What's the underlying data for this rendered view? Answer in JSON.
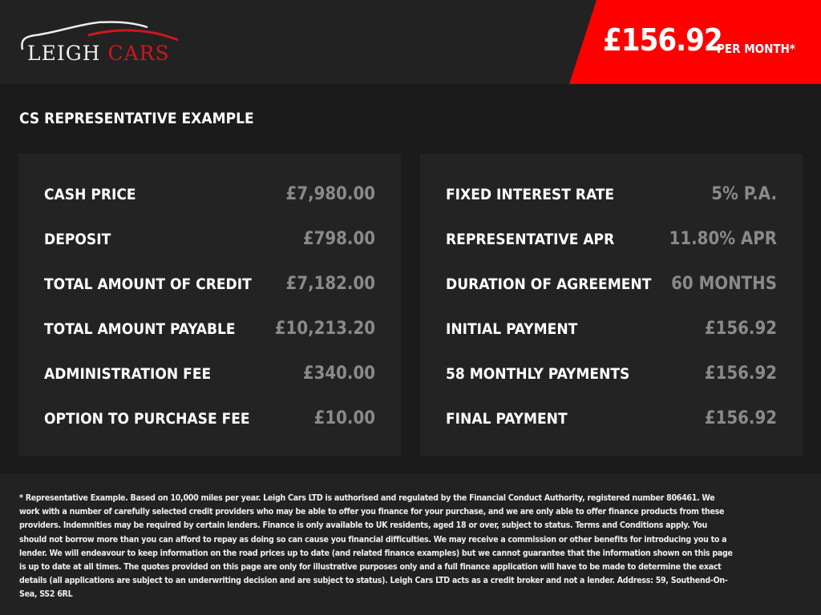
{
  "header": {
    "logo_text_white": "LEIGH",
    "logo_text_red": "CARS",
    "price": "£156.92",
    "price_suffix": "PER MONTH*"
  },
  "colors": {
    "accent": "#ff0000",
    "logo_red": "#d0161d"
  },
  "section_title": "CS REPRESENTATIVE EXAMPLE",
  "left": [
    {
      "label": "CASH PRICE",
      "value": "£7,980.00"
    },
    {
      "label": "DEPOSIT",
      "value": "£798.00"
    },
    {
      "label": "TOTAL AMOUNT OF CREDIT",
      "value": "£7,182.00"
    },
    {
      "label": "TOTAL AMOUNT PAYABLE",
      "value": "£10,213.20"
    },
    {
      "label": "ADMINISTRATION FEE",
      "value": "£340.00"
    },
    {
      "label": "OPTION TO PURCHASE FEE",
      "value": "£10.00"
    }
  ],
  "right": [
    {
      "label": "FIXED INTEREST RATE",
      "value": "5% P.A."
    },
    {
      "label": "REPRESENTATIVE APR",
      "value": "11.80% APR"
    },
    {
      "label": "DURATION OF AGREEMENT",
      "value": "60 MONTHS"
    },
    {
      "label": "INITIAL PAYMENT",
      "value": "£156.92"
    },
    {
      "label": "58 MONTHLY PAYMENTS",
      "value": "£156.92"
    },
    {
      "label": "FINAL PAYMENT",
      "value": "£156.92"
    }
  ],
  "disclaimer": "* Representative Example. Based on 10,000 miles per year. Leigh Cars LTD is authorised and regulated by the Financial Conduct Authority, registered number 806461. We work with a number of carefully selected credit providers who may be able to offer you finance for your purchase, and we are only able to offer finance products from these providers. Indemnities may be required by certain lenders. Finance is only available to UK residents, aged 18 or over, subject to status. Terms and Conditions apply. You should not borrow more than you can afford to repay as doing so can cause you financial difficulties. We may receive a commission or other benefits for introducing you to a lender. We will endeavour to keep information on the road prices up to date (and related finance examples) but we cannot guarantee that the information shown on this page is up to date at all times. The quotes provided on this page are only for illustrative purposes only and a full finance application will have to be made to determine the exact details (all applications are subject to an underwriting decision and are subject to status). Leigh Cars LTD acts as a credit broker and not a lender. Address:  59, Southend-On-Sea, SS2 6RL"
}
